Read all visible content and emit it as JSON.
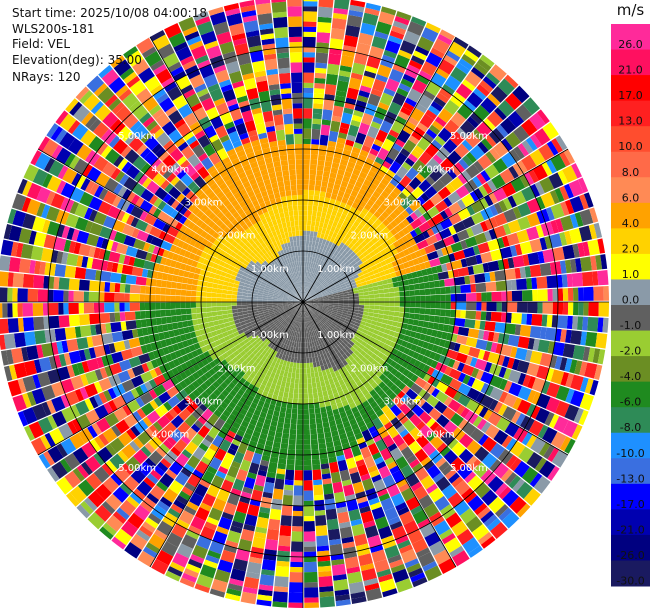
{
  "header": {
    "start_time": "Start time: 2025/10/08 04:00:18",
    "instrument": "WLS200s-181",
    "field": "Field: VEL",
    "elevation": "Elevation(deg): 35.00",
    "nrays": "NRays: 120"
  },
  "chart_data": {
    "type": "heatmap",
    "projection": "polar-ppi",
    "field": "VEL",
    "unit": "m/s",
    "elevation_deg": 35.0,
    "n_rays": 120,
    "max_range_km": 6.0,
    "range_rings_km": [
      1,
      2,
      3,
      4,
      5
    ],
    "ring_label_suffix": ".00km",
    "ring_labels": [
      "1.00km",
      "2.00km",
      "3.00km",
      "4.00km",
      "5.00km"
    ],
    "spokes_deg": [
      0,
      30,
      60,
      90,
      120,
      150,
      180,
      210,
      240,
      270,
      300,
      330
    ],
    "colorbar": {
      "unit": "m/s",
      "ticks": [
        "26.0",
        "21.0",
        "17.0",
        "13.0",
        "10.0",
        "8.0",
        "6.0",
        "4.0",
        "2.0",
        "1.0",
        "0.0",
        "-1.0",
        "-2.0",
        "-4.0",
        "-6.0",
        "-8.0",
        "-10.0",
        "-13.0",
        "-17.0",
        "-21.0",
        "-26.0",
        "-30.0"
      ],
      "colors": [
        "#ff2a9a",
        "#ff1060",
        "#ff0000",
        "#ff2020",
        "#ff4d2e",
        "#ff6a48",
        "#ff8a55",
        "#ffa200",
        "#ffd200",
        "#ffff00",
        "#8a9aa8",
        "#606060",
        "#9acd32",
        "#6b8e23",
        "#1f8a1f",
        "#2e8b57",
        "#1e90ff",
        "#3a6fe0",
        "#0000ff",
        "#0000b0",
        "#000080",
        "#1a1a60"
      ]
    },
    "velocity_pattern": {
      "noise_beyond_km": 3.0,
      "inner_bands": [
        {
          "range_km": [
            0,
            1.2
          ],
          "north": "0.0",
          "south": "-1.0"
        },
        {
          "range_km": [
            1.2,
            2.0
          ],
          "north": "2.0",
          "south": "-2.0"
        },
        {
          "range_km": [
            2.0,
            3.0
          ],
          "north": "4.0",
          "south": "-6.0"
        }
      ]
    }
  }
}
